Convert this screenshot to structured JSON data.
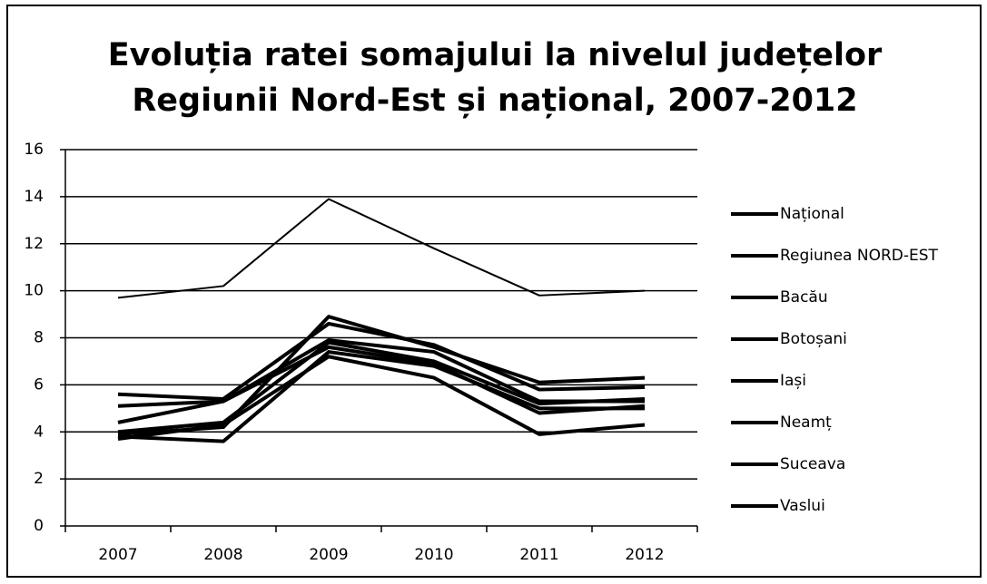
{
  "chart_data": {
    "type": "line",
    "title": [
      "Evoluția ratei somajului la nivelul județelor",
      "Regiunii Nord-Est și național, 2007-2012"
    ],
    "categories": [
      "2007",
      "2008",
      "2009",
      "2010",
      "2011",
      "2012"
    ],
    "series": [
      {
        "name": "Național",
        "color": "#000000",
        "width": 4,
        "values": [
          4.0,
          4.4,
          7.8,
          7.0,
          5.2,
          5.4
        ]
      },
      {
        "name": "Regiunea NORD-EST",
        "color": "#000000",
        "width": 4,
        "values": [
          5.1,
          5.3,
          7.9,
          7.4,
          5.3,
          5.3
        ]
      },
      {
        "name": "Bacău",
        "color": "#000000",
        "width": 4,
        "values": [
          5.6,
          5.4,
          8.6,
          7.7,
          5.8,
          5.9
        ]
      },
      {
        "name": "Botoșani",
        "color": "#000000",
        "width": 4,
        "values": [
          3.9,
          4.2,
          8.9,
          7.6,
          6.1,
          6.3
        ]
      },
      {
        "name": "Iași",
        "color": "#000000",
        "width": 4,
        "values": [
          4.4,
          5.3,
          7.6,
          6.9,
          4.8,
          5.1
        ]
      },
      {
        "name": "Neamț",
        "color": "#000000",
        "width": 4,
        "values": [
          3.8,
          3.6,
          7.4,
          6.8,
          5.0,
          5.0
        ]
      },
      {
        "name": "Suceava",
        "color": "#000000",
        "width": 4,
        "values": [
          3.7,
          4.3,
          7.2,
          6.3,
          3.9,
          4.3
        ]
      },
      {
        "name": "Vaslui",
        "color": "#000000",
        "width": 2,
        "values": [
          9.7,
          10.2,
          13.9,
          11.8,
          9.8,
          10.0
        ]
      }
    ],
    "ylim": [
      0,
      16
    ],
    "yticks": [
      0,
      2,
      4,
      6,
      8,
      10,
      12,
      14,
      16
    ],
    "grid": true,
    "legend": "right"
  }
}
